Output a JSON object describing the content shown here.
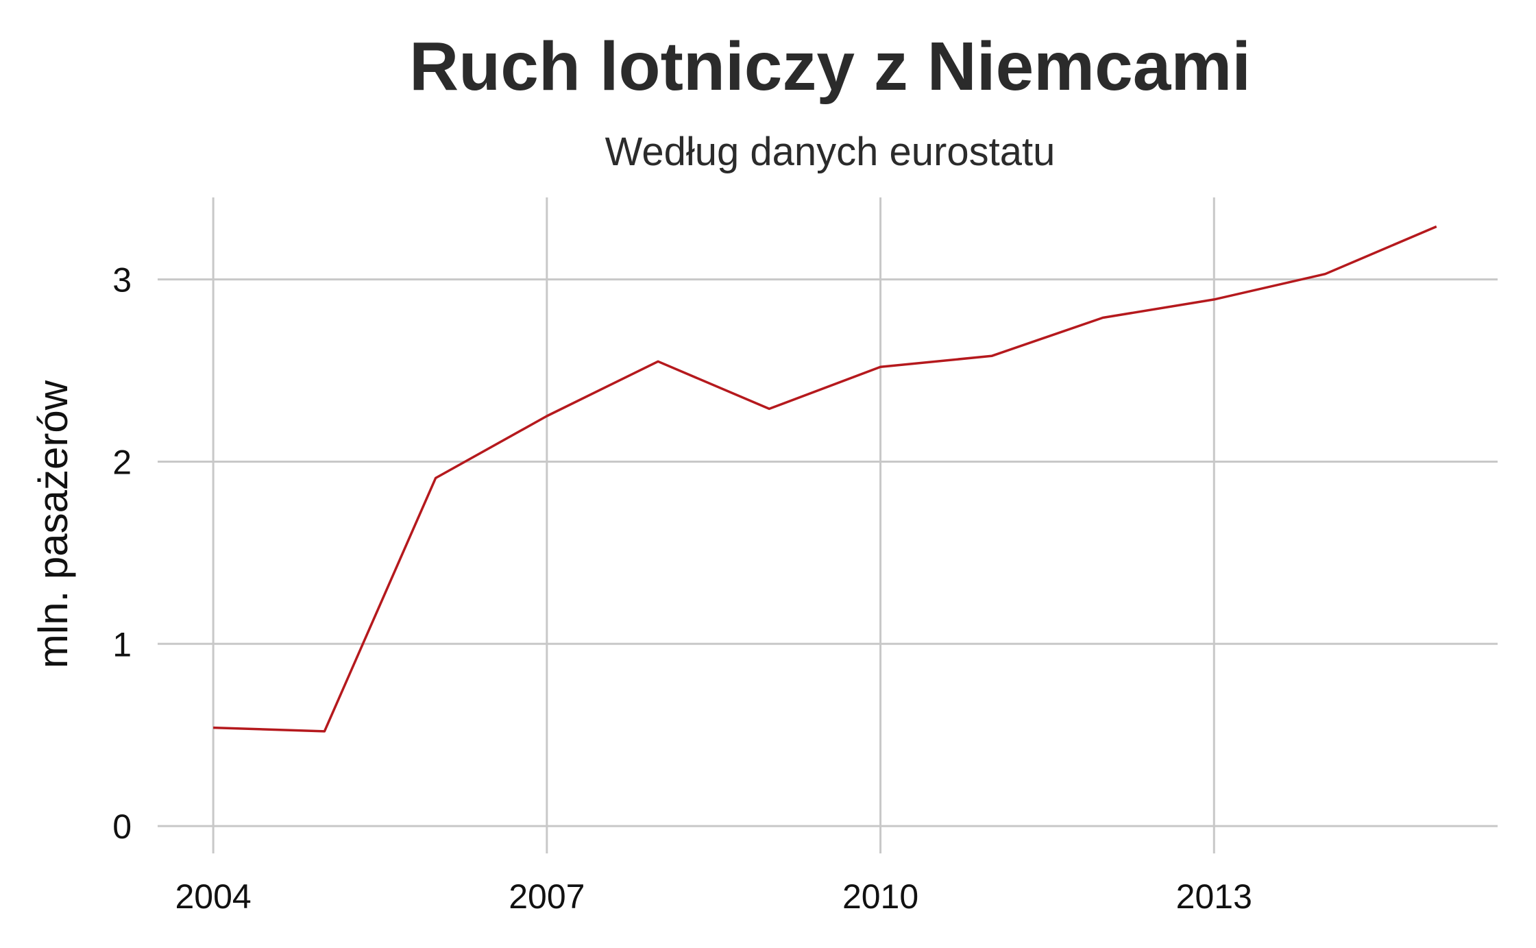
{
  "chart_data": {
    "type": "line",
    "title": "Ruch lotniczy z Niemcami",
    "subtitle": "Według danych eurostatu",
    "xlabel": "",
    "ylabel": "mln. pasażerów",
    "x": [
      2004,
      2005,
      2006,
      2007,
      2008,
      2009,
      2010,
      2011,
      2012,
      2013,
      2014,
      2015
    ],
    "series": [
      {
        "values": [
          0.54,
          0.52,
          1.91,
          2.25,
          2.55,
          2.29,
          2.52,
          2.58,
          2.79,
          2.89,
          3.03,
          3.29
        ],
        "color": "#b5191d"
      }
    ],
    "xlim": [
      2003.5,
      2015.55
    ],
    "ylim": [
      -0.15,
      3.45
    ],
    "x_ticks": [
      2004,
      2007,
      2010,
      2013
    ],
    "y_ticks": [
      0,
      1,
      2,
      3
    ],
    "grid": true,
    "legend": "none"
  }
}
